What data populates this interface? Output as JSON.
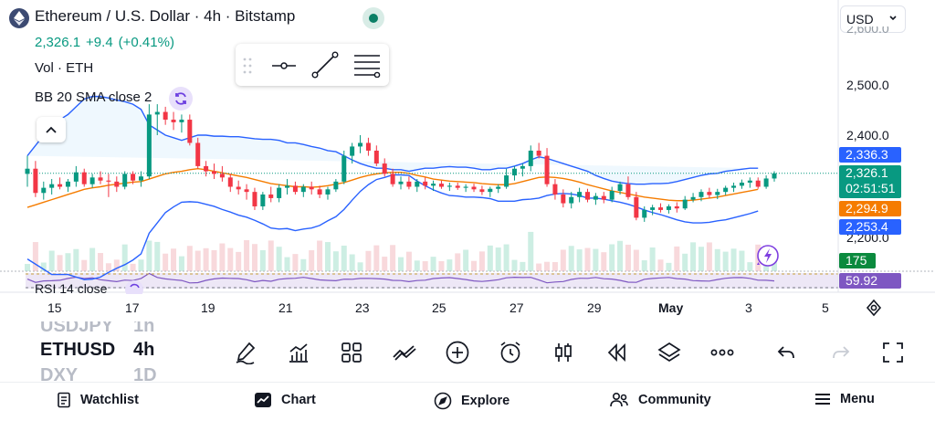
{
  "header": {
    "title": "Ethereum / U.S. Dollar · 4h · Bitstamp",
    "price": "2,326.1",
    "change": "+9.4",
    "change_pct": "(+0.41%)",
    "volume_label": "Vol · ETH",
    "bb_label": "BB 20 SMA close 2",
    "currency": "USD",
    "accent_green": "#089981",
    "accent_red": "#f23645"
  },
  "price_axis": {
    "ticks": [
      "2,500.0",
      "2,400.0",
      "2,200.0"
    ],
    "partial_top": "2,600.0",
    "labels": {
      "bb_upper": "2,336.3",
      "last": "2,326.1",
      "countdown": "02:51:51",
      "bb_basis": "2,294.9",
      "bb_lower": "2,253.4",
      "volume": "175",
      "rsi": "59.92"
    }
  },
  "time_axis": {
    "ticks": [
      "15",
      "17",
      "19",
      "21",
      "23",
      "25",
      "27",
      "29",
      "May",
      "3",
      "5"
    ]
  },
  "rsi_label": "RSI 14 close",
  "symbols": [
    {
      "name": "USDJPY",
      "tf": "1h"
    },
    {
      "name": "ETHUSD",
      "tf": "4h"
    },
    {
      "name": "DXY",
      "tf": "1D"
    }
  ],
  "toolbar": {
    "icons": [
      "draw-icon",
      "indicators-icon",
      "layouts-icon",
      "compare-icon",
      "add-icon",
      "alert-icon",
      "chart-type-icon",
      "replay-icon",
      "layers-icon",
      "more-icon",
      "undo-icon",
      "redo-icon",
      "fullscreen-icon"
    ]
  },
  "nav": {
    "watchlist": "Watchlist",
    "chart": "Chart",
    "explore": "Explore",
    "community": "Community",
    "menu": "Menu"
  },
  "chart_data": {
    "type": "candlestick",
    "ylim": [
      2170,
      2610
    ],
    "x_ticks": [
      "15",
      "17",
      "19",
      "21",
      "23",
      "25",
      "27",
      "29",
      "May",
      "3",
      "5"
    ],
    "candles": [
      {
        "o": 2325,
        "h": 2360,
        "l": 2300,
        "c": 2335
      },
      {
        "o": 2335,
        "h": 2350,
        "l": 2280,
        "c": 2288
      },
      {
        "o": 2288,
        "h": 2310,
        "l": 2275,
        "c": 2298
      },
      {
        "o": 2298,
        "h": 2315,
        "l": 2285,
        "c": 2305
      },
      {
        "o": 2305,
        "h": 2318,
        "l": 2295,
        "c": 2300
      },
      {
        "o": 2300,
        "h": 2315,
        "l": 2290,
        "c": 2310
      },
      {
        "o": 2310,
        "h": 2340,
        "l": 2300,
        "c": 2328
      },
      {
        "o": 2328,
        "h": 2335,
        "l": 2300,
        "c": 2305
      },
      {
        "o": 2305,
        "h": 2325,
        "l": 2298,
        "c": 2318
      },
      {
        "o": 2318,
        "h": 2330,
        "l": 2305,
        "c": 2312
      },
      {
        "o": 2312,
        "h": 2325,
        "l": 2280,
        "c": 2310
      },
      {
        "o": 2310,
        "h": 2320,
        "l": 2290,
        "c": 2300
      },
      {
        "o": 2300,
        "h": 2330,
        "l": 2295,
        "c": 2325
      },
      {
        "o": 2325,
        "h": 2330,
        "l": 2305,
        "c": 2312
      },
      {
        "o": 2312,
        "h": 2330,
        "l": 2300,
        "c": 2320
      },
      {
        "o": 2320,
        "h": 2460,
        "l": 2315,
        "c": 2440
      },
      {
        "o": 2440,
        "h": 2460,
        "l": 2400,
        "c": 2445
      },
      {
        "o": 2445,
        "h": 2455,
        "l": 2420,
        "c": 2430
      },
      {
        "o": 2430,
        "h": 2445,
        "l": 2410,
        "c": 2425
      },
      {
        "o": 2425,
        "h": 2440,
        "l": 2405,
        "c": 2430
      },
      {
        "o": 2430,
        "h": 2440,
        "l": 2380,
        "c": 2385
      },
      {
        "o": 2385,
        "h": 2395,
        "l": 2335,
        "c": 2340
      },
      {
        "o": 2340,
        "h": 2350,
        "l": 2320,
        "c": 2330
      },
      {
        "o": 2330,
        "h": 2345,
        "l": 2315,
        "c": 2325
      },
      {
        "o": 2325,
        "h": 2340,
        "l": 2310,
        "c": 2318
      },
      {
        "o": 2318,
        "h": 2325,
        "l": 2290,
        "c": 2300
      },
      {
        "o": 2300,
        "h": 2312,
        "l": 2285,
        "c": 2295
      },
      {
        "o": 2295,
        "h": 2305,
        "l": 2275,
        "c": 2290
      },
      {
        "o": 2290,
        "h": 2298,
        "l": 2255,
        "c": 2262
      },
      {
        "o": 2262,
        "h": 2290,
        "l": 2255,
        "c": 2285
      },
      {
        "o": 2285,
        "h": 2300,
        "l": 2270,
        "c": 2278
      },
      {
        "o": 2278,
        "h": 2305,
        "l": 2270,
        "c": 2298
      },
      {
        "o": 2298,
        "h": 2315,
        "l": 2285,
        "c": 2302
      },
      {
        "o": 2302,
        "h": 2310,
        "l": 2285,
        "c": 2290
      },
      {
        "o": 2290,
        "h": 2305,
        "l": 2280,
        "c": 2300
      },
      {
        "o": 2300,
        "h": 2310,
        "l": 2285,
        "c": 2295
      },
      {
        "o": 2295,
        "h": 2302,
        "l": 2278,
        "c": 2285
      },
      {
        "o": 2285,
        "h": 2300,
        "l": 2275,
        "c": 2295
      },
      {
        "o": 2295,
        "h": 2315,
        "l": 2290,
        "c": 2310
      },
      {
        "o": 2310,
        "h": 2370,
        "l": 2305,
        "c": 2360
      },
      {
        "o": 2360,
        "h": 2385,
        "l": 2345,
        "c": 2378
      },
      {
        "o": 2378,
        "h": 2400,
        "l": 2365,
        "c": 2385
      },
      {
        "o": 2385,
        "h": 2395,
        "l": 2360,
        "c": 2370
      },
      {
        "o": 2370,
        "h": 2380,
        "l": 2340,
        "c": 2345
      },
      {
        "o": 2345,
        "h": 2355,
        "l": 2320,
        "c": 2325
      },
      {
        "o": 2325,
        "h": 2335,
        "l": 2300,
        "c": 2305
      },
      {
        "o": 2305,
        "h": 2320,
        "l": 2295,
        "c": 2310
      },
      {
        "o": 2310,
        "h": 2320,
        "l": 2295,
        "c": 2300
      },
      {
        "o": 2300,
        "h": 2315,
        "l": 2290,
        "c": 2310
      },
      {
        "o": 2310,
        "h": 2318,
        "l": 2295,
        "c": 2302
      },
      {
        "o": 2302,
        "h": 2312,
        "l": 2292,
        "c": 2306
      },
      {
        "o": 2306,
        "h": 2312,
        "l": 2296,
        "c": 2300
      },
      {
        "o": 2300,
        "h": 2308,
        "l": 2292,
        "c": 2302
      },
      {
        "o": 2302,
        "h": 2308,
        "l": 2294,
        "c": 2298
      },
      {
        "o": 2298,
        "h": 2305,
        "l": 2290,
        "c": 2300
      },
      {
        "o": 2300,
        "h": 2306,
        "l": 2290,
        "c": 2295
      },
      {
        "o": 2295,
        "h": 2302,
        "l": 2284,
        "c": 2290
      },
      {
        "o": 2290,
        "h": 2300,
        "l": 2280,
        "c": 2296
      },
      {
        "o": 2296,
        "h": 2305,
        "l": 2288,
        "c": 2300
      },
      {
        "o": 2300,
        "h": 2335,
        "l": 2296,
        "c": 2322
      },
      {
        "o": 2322,
        "h": 2340,
        "l": 2312,
        "c": 2335
      },
      {
        "o": 2335,
        "h": 2345,
        "l": 2320,
        "c": 2340
      },
      {
        "o": 2340,
        "h": 2380,
        "l": 2330,
        "c": 2370
      },
      {
        "o": 2370,
        "h": 2385,
        "l": 2355,
        "c": 2360
      },
      {
        "o": 2360,
        "h": 2375,
        "l": 2300,
        "c": 2305
      },
      {
        "o": 2305,
        "h": 2315,
        "l": 2275,
        "c": 2285
      },
      {
        "o": 2285,
        "h": 2295,
        "l": 2260,
        "c": 2268
      },
      {
        "o": 2268,
        "h": 2290,
        "l": 2258,
        "c": 2280
      },
      {
        "o": 2280,
        "h": 2298,
        "l": 2270,
        "c": 2290
      },
      {
        "o": 2290,
        "h": 2296,
        "l": 2270,
        "c": 2275
      },
      {
        "o": 2275,
        "h": 2288,
        "l": 2265,
        "c": 2282
      },
      {
        "o": 2282,
        "h": 2290,
        "l": 2268,
        "c": 2275
      },
      {
        "o": 2275,
        "h": 2300,
        "l": 2270,
        "c": 2292
      },
      {
        "o": 2292,
        "h": 2310,
        "l": 2285,
        "c": 2305
      },
      {
        "o": 2305,
        "h": 2320,
        "l": 2275,
        "c": 2280
      },
      {
        "o": 2280,
        "h": 2290,
        "l": 2235,
        "c": 2240
      },
      {
        "o": 2240,
        "h": 2262,
        "l": 2232,
        "c": 2255
      },
      {
        "o": 2255,
        "h": 2265,
        "l": 2245,
        "c": 2260
      },
      {
        "o": 2260,
        "h": 2268,
        "l": 2250,
        "c": 2255
      },
      {
        "o": 2255,
        "h": 2266,
        "l": 2248,
        "c": 2262
      },
      {
        "o": 2262,
        "h": 2270,
        "l": 2250,
        "c": 2258
      },
      {
        "o": 2258,
        "h": 2282,
        "l": 2255,
        "c": 2275
      },
      {
        "o": 2275,
        "h": 2288,
        "l": 2270,
        "c": 2280
      },
      {
        "o": 2280,
        "h": 2295,
        "l": 2272,
        "c": 2290
      },
      {
        "o": 2290,
        "h": 2298,
        "l": 2278,
        "c": 2284
      },
      {
        "o": 2284,
        "h": 2296,
        "l": 2276,
        "c": 2290
      },
      {
        "o": 2290,
        "h": 2302,
        "l": 2284,
        "c": 2298
      },
      {
        "o": 2298,
        "h": 2308,
        "l": 2290,
        "c": 2302
      },
      {
        "o": 2302,
        "h": 2314,
        "l": 2296,
        "c": 2308
      },
      {
        "o": 2308,
        "h": 2318,
        "l": 2298,
        "c": 2312
      },
      {
        "o": 2312,
        "h": 2318,
        "l": 2296,
        "c": 2300
      },
      {
        "o": 2300,
        "h": 2322,
        "l": 2296,
        "c": 2316
      },
      {
        "o": 2316,
        "h": 2330,
        "l": 2310,
        "c": 2326
      }
    ],
    "bb_upper": [
      2360,
      2380,
      2400,
      2420,
      2430,
      2440,
      2455,
      2470,
      2475,
      2475,
      2472,
      2468,
      2465,
      2460,
      2450,
      2420,
      2410,
      2400,
      2395,
      2390,
      2395,
      2400,
      2400,
      2398,
      2398,
      2397,
      2397,
      2395,
      2393,
      2392,
      2392,
      2390,
      2385,
      2385,
      2382,
      2378,
      2375,
      2370,
      2368,
      2360,
      2352,
      2345,
      2340,
      2336,
      2336,
      2333,
      2333,
      2330,
      2333,
      2336,
      2336,
      2338,
      2339,
      2338,
      2338,
      2336,
      2333,
      2333,
      2336,
      2336,
      2340,
      2345,
      2352,
      2358,
      2355,
      2350,
      2345,
      2340,
      2335,
      2330,
      2322,
      2316,
      2311,
      2308,
      2306,
      2305,
      2305,
      2306,
      2306,
      2307,
      2310,
      2314,
      2318,
      2322,
      2325,
      2326,
      2330,
      2332,
      2334,
      2336,
      2336
    ],
    "bb_basis": [
      2260,
      2265,
      2270,
      2275,
      2280,
      2285,
      2290,
      2295,
      2298,
      2300,
      2303,
      2305,
      2307,
      2309,
      2310,
      2315,
      2320,
      2325,
      2328,
      2330,
      2333,
      2335,
      2333,
      2330,
      2327,
      2324,
      2321,
      2318,
      2314,
      2310,
      2306,
      2304,
      2302,
      2300,
      2300,
      2299,
      2300,
      2302,
      2305,
      2308,
      2313,
      2318,
      2322,
      2325,
      2327,
      2328,
      2328,
      2326,
      2322,
      2319,
      2315,
      2313,
      2311,
      2310,
      2309,
      2308,
      2306,
      2305,
      2304,
      2304,
      2306,
      2310,
      2314,
      2318,
      2319,
      2318,
      2316,
      2313,
      2309,
      2304,
      2300,
      2296,
      2292,
      2289,
      2286,
      2283,
      2280,
      2278,
      2276,
      2274,
      2273,
      2273,
      2274,
      2276,
      2278,
      2280,
      2283,
      2286,
      2289,
      2292,
      2295
    ],
    "bb_lower": [
      2160,
      2150,
      2140,
      2130,
      2130,
      2130,
      2125,
      2120,
      2121,
      2125,
      2134,
      2142,
      2149,
      2158,
      2170,
      2210,
      2230,
      2250,
      2261,
      2270,
      2271,
      2270,
      2266,
      2262,
      2256,
      2251,
      2245,
      2241,
      2235,
      2228,
      2220,
      2218,
      2219,
      2215,
      2218,
      2220,
      2225,
      2234,
      2242,
      2256,
      2274,
      2291,
      2304,
      2314,
      2318,
      2323,
      2323,
      2322,
      2311,
      2302,
      2294,
      2288,
      2283,
      2282,
      2280,
      2280,
      2279,
      2277,
      2272,
      2272,
      2272,
      2275,
      2276,
      2278,
      2283,
      2286,
      2287,
      2286,
      2283,
      2278,
      2278,
      2276,
      2273,
      2270,
      2266,
      2261,
      2255,
      2250,
      2246,
      2241,
      2236,
      2232,
      2230,
      2230,
      2231,
      2234,
      2236,
      2240,
      2244,
      2248,
      2253
    ]
  }
}
